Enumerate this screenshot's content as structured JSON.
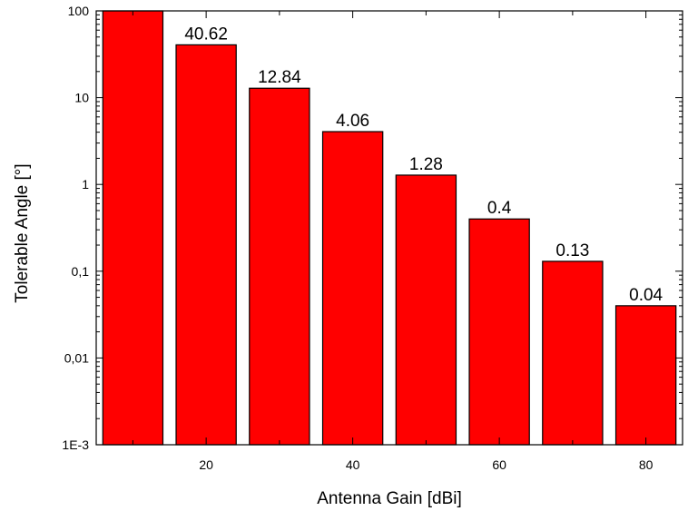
{
  "chart_data": {
    "type": "bar",
    "x": [
      10,
      20,
      30,
      40,
      50,
      60,
      70,
      80
    ],
    "values": [
      128.5,
      40.62,
      12.84,
      4.06,
      1.28,
      0.4,
      0.13,
      0.04
    ],
    "data_labels": [
      "",
      "40.62",
      "12.84",
      "4.06",
      "1.28",
      "0.4",
      "0.13",
      "0.04"
    ],
    "xlabel": "Antenna Gain [dBi]",
    "ylabel": "Tolerable Angle [°]",
    "xlim": [
      5,
      85
    ],
    "ylim": [
      0.001,
      100
    ],
    "yscale": "log",
    "x_ticks": [
      20,
      40,
      60,
      80
    ],
    "x_tick_labels": [
      "20",
      "40",
      "60",
      "80"
    ],
    "y_ticks": [
      100,
      10,
      1,
      0.1,
      0.01,
      0.001
    ],
    "y_tick_labels": [
      "100",
      "10",
      "1",
      "0,1",
      "0,01",
      "1E-3"
    ],
    "grid": false,
    "bar_color": "#ff0000"
  }
}
